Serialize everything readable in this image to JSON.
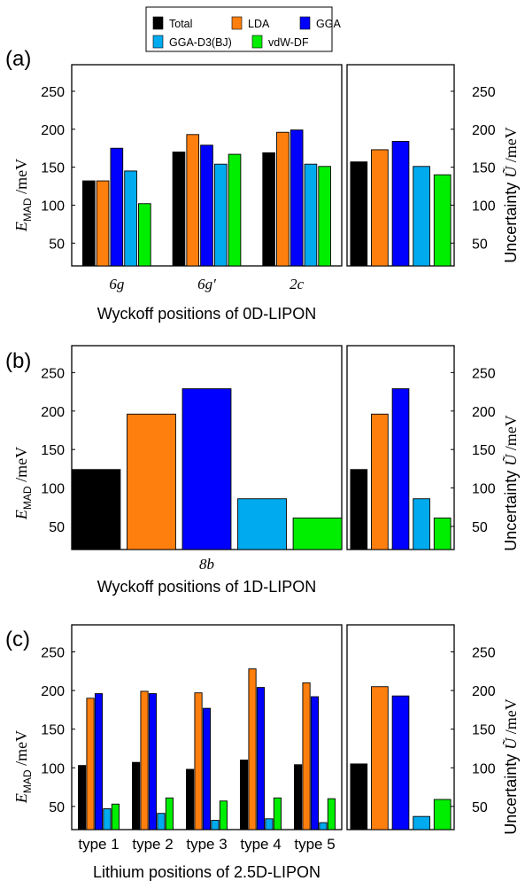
{
  "legend": {
    "placement": "top-center",
    "entries": [
      {
        "label": "Total",
        "color": "#000000"
      },
      {
        "label": "LDA",
        "color": "#ff7f0e"
      },
      {
        "label": "GGA",
        "color": "#0000ff"
      },
      {
        "label": "GGA-D3(BJ)",
        "color": "#00aaee"
      },
      {
        "label": "vdW-DF",
        "color": "#00ee00"
      }
    ]
  },
  "chart_data": [
    {
      "type": "bar",
      "panel_label": "(a)",
      "xlabel": "Wyckoff positions of 0D-LIPON",
      "ylabel_left": "E_MAD /meV",
      "ylabel_right": "Uncertainty Ũ /meV",
      "ylim": [
        20,
        285
      ],
      "yticks": [
        50,
        100,
        150,
        200,
        250
      ],
      "categories": [
        "6g",
        "6g′",
        "2c"
      ],
      "series": [
        {
          "name": "LDA",
          "values": [
            132,
            193,
            196
          ]
        },
        {
          "name": "GGA",
          "values": [
            175,
            179,
            199
          ]
        },
        {
          "name": "GGA-D3(BJ)",
          "values": [
            145,
            154,
            154
          ]
        },
        {
          "name": "vdW-DF",
          "values": [
            102,
            167,
            151
          ]
        }
      ],
      "total": [
        132,
        170,
        169
      ],
      "uncertainty": {
        "Total": 157,
        "LDA": 173,
        "GGA": 184,
        "GGA-D3(BJ)": 151,
        "vdW-DF": 140
      }
    },
    {
      "type": "bar",
      "panel_label": "(b)",
      "xlabel": "Wyckoff positions of 1D-LIPON",
      "ylabel_left": "E_MAD /meV",
      "ylabel_right": "Uncertainty Ũ /meV",
      "ylim": [
        20,
        285
      ],
      "yticks": [
        50,
        100,
        150,
        200,
        250
      ],
      "categories": [
        "8b"
      ],
      "series": [
        {
          "name": "LDA",
          "values": [
            196
          ]
        },
        {
          "name": "GGA",
          "values": [
            229
          ]
        },
        {
          "name": "GGA-D3(BJ)",
          "values": [
            86
          ]
        },
        {
          "name": "vdW-DF",
          "values": [
            61
          ]
        }
      ],
      "total": [
        124
      ],
      "uncertainty": {
        "Total": 124,
        "LDA": 196,
        "GGA": 229,
        "GGA-D3(BJ)": 86,
        "vdW-DF": 61
      }
    },
    {
      "type": "bar",
      "panel_label": "(c)",
      "xlabel": "Lithium positions of 2.5D-LIPON",
      "ylabel_left": "E_MAD /meV",
      "ylabel_right": "Uncertainty Ũ /meV",
      "ylim": [
        20,
        285
      ],
      "yticks": [
        50,
        100,
        150,
        200,
        250
      ],
      "categories": [
        "type 1",
        "type 2",
        "type 3",
        "type 4",
        "type 5"
      ],
      "series": [
        {
          "name": "LDA",
          "values": [
            190,
            199,
            197,
            228,
            210
          ]
        },
        {
          "name": "GGA",
          "values": [
            196,
            196,
            177,
            204,
            192
          ]
        },
        {
          "name": "GGA-D3(BJ)",
          "values": [
            47,
            41,
            32,
            34,
            29
          ]
        },
        {
          "name": "vdW-DF",
          "values": [
            53,
            61,
            57,
            61,
            60
          ]
        }
      ],
      "total": [
        103,
        107,
        98,
        110,
        104
      ],
      "uncertainty": {
        "Total": 105,
        "LDA": 205,
        "GGA": 193,
        "GGA-D3(BJ)": 37,
        "vdW-DF": 59
      }
    }
  ]
}
